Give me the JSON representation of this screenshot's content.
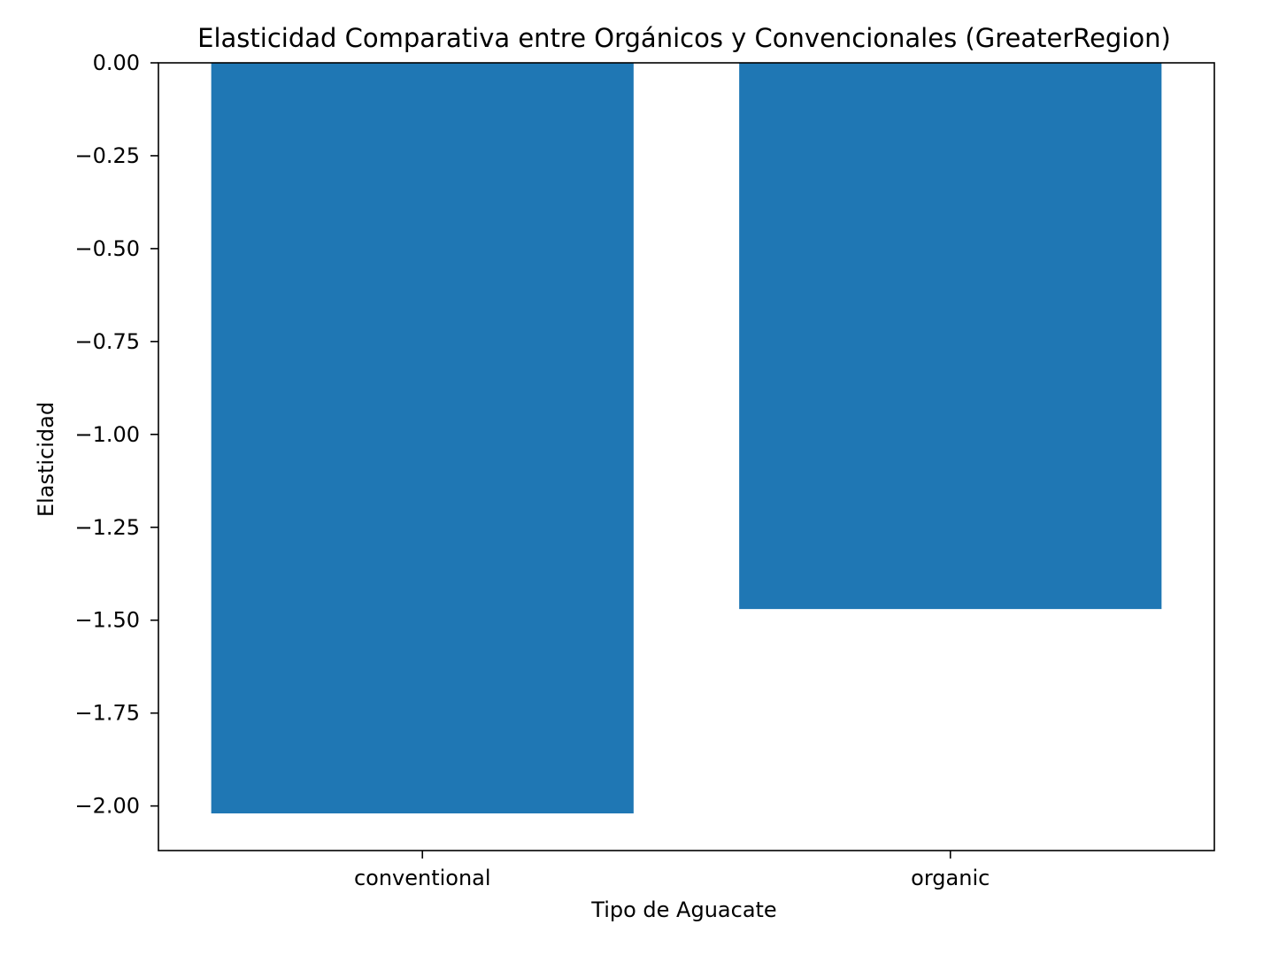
{
  "chart_data": {
    "type": "bar",
    "title": "Elasticidad Comparativa entre Orgánicos y Convencionales (GreaterRegion)",
    "xlabel": "Tipo de Aguacate",
    "ylabel": "Elasticidad",
    "categories": [
      "conventional",
      "organic"
    ],
    "values": [
      -2.02,
      -1.47
    ],
    "ylim": [
      -2.12,
      0.0
    ],
    "yticks": [
      0.0,
      -0.25,
      -0.5,
      -0.75,
      -1.0,
      -1.25,
      -1.5,
      -1.75,
      -2.0
    ],
    "ytick_labels": [
      "0.00",
      "−0.25",
      "−0.50",
      "−0.75",
      "−1.00",
      "−1.25",
      "−1.50",
      "−1.75",
      "−2.00"
    ],
    "bar_color": "#1f77b4",
    "grid": false,
    "legend": "none"
  }
}
